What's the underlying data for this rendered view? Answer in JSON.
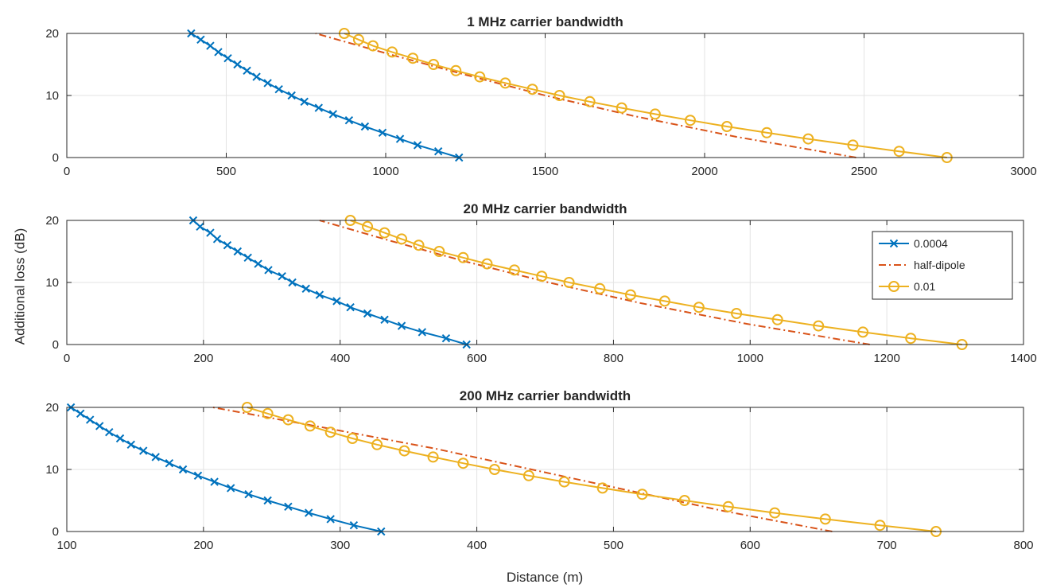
{
  "figure": {
    "ylabel": "Additional loss (dB)",
    "xlabel": "Distance (m)"
  },
  "legend": {
    "placement": "inside-right of middle subplot",
    "entries": [
      {
        "name": "0.0004",
        "color": "#0072BD",
        "style": "solid",
        "marker": "x"
      },
      {
        "name": "half-dipole",
        "color": "#D95319",
        "style": "dash-dot",
        "marker": "none"
      },
      {
        "name": "0.01",
        "color": "#EDB120",
        "style": "solid",
        "marker": "circle"
      }
    ]
  },
  "chart_data": [
    {
      "type": "line",
      "title": "1 MHz carrier bandwidth",
      "xlim": [
        0,
        3000
      ],
      "ylim": [
        0,
        20
      ],
      "xticks": [
        "0",
        "500",
        "1000",
        "1500",
        "2000",
        "2500",
        "3000"
      ],
      "yticks": [
        "0",
        "10",
        "20"
      ],
      "grid": true,
      "series": [
        {
          "name": "0.0004",
          "x": [
            1230,
            1165,
            1100,
            1045,
            990,
            935,
            885,
            835,
            790,
            745,
            705,
            665,
            630,
            595,
            565,
            535,
            505,
            475,
            450,
            420,
            390
          ],
          "y": [
            0,
            1,
            2,
            3,
            4,
            5,
            6,
            7,
            8,
            9,
            10,
            11,
            12,
            13,
            14,
            15,
            16,
            17,
            18,
            19,
            20
          ]
        },
        {
          "name": "half-dipole",
          "x": [
            2475,
            2100,
            1780,
            1500,
            1250,
            1010,
            780
          ],
          "y": [
            0,
            3.33,
            6.67,
            10,
            13.33,
            16.67,
            20
          ]
        },
        {
          "name": "0.01",
          "x": [
            2760,
            2610,
            2465,
            2325,
            2195,
            2070,
            1955,
            1845,
            1740,
            1640,
            1545,
            1460,
            1375,
            1295,
            1220,
            1150,
            1085,
            1020,
            960,
            915,
            870
          ],
          "y": [
            0,
            1,
            2,
            3,
            4,
            5,
            6,
            7,
            8,
            9,
            10,
            11,
            12,
            13,
            14,
            15,
            16,
            17,
            18,
            19,
            20
          ]
        }
      ]
    },
    {
      "type": "line",
      "title": "20 MHz carrier bandwidth",
      "xlim": [
        0,
        1400
      ],
      "ylim": [
        0,
        20
      ],
      "xticks": [
        "0",
        "200",
        "400",
        "600",
        "800",
        "1000",
        "1200",
        "1400"
      ],
      "yticks": [
        "0",
        "10",
        "20"
      ],
      "grid": true,
      "series": [
        {
          "name": "0.0004",
          "x": [
            585,
            555,
            520,
            490,
            465,
            440,
            415,
            395,
            370,
            350,
            330,
            315,
            295,
            280,
            265,
            250,
            235,
            220,
            210,
            195,
            185
          ],
          "y": [
            0,
            1,
            2,
            3,
            4,
            5,
            6,
            7,
            8,
            9,
            10,
            11,
            12,
            13,
            14,
            15,
            16,
            17,
            18,
            19,
            20
          ]
        },
        {
          "name": "half-dipole",
          "x": [
            1175,
            995,
            840,
            705,
            585,
            475,
            370
          ],
          "y": [
            0,
            3.33,
            6.67,
            10,
            13.33,
            16.67,
            20
          ]
        },
        {
          "name": "0.01",
          "x": [
            1310,
            1235,
            1165,
            1100,
            1040,
            980,
            925,
            875,
            825,
            780,
            735,
            695,
            655,
            615,
            580,
            545,
            515,
            490,
            465,
            440,
            415
          ],
          "y": [
            0,
            1,
            2,
            3,
            4,
            5,
            6,
            7,
            8,
            9,
            10,
            11,
            12,
            13,
            14,
            15,
            16,
            17,
            18,
            19,
            20
          ]
        }
      ]
    },
    {
      "type": "line",
      "title": "200 MHz carrier bandwidth",
      "xlim": [
        100,
        800
      ],
      "ylim": [
        0,
        20
      ],
      "xticks": [
        "100",
        "200",
        "300",
        "400",
        "500",
        "600",
        "700",
        "800"
      ],
      "yticks": [
        "0",
        "10",
        "20"
      ],
      "grid": true,
      "series": [
        {
          "name": "0.0004",
          "x": [
            330,
            310,
            293,
            277,
            262,
            247,
            233,
            220,
            208,
            196,
            185,
            175,
            165,
            156,
            147,
            139,
            131,
            124,
            117,
            110,
            103
          ],
          "y": [
            0,
            1,
            2,
            3,
            4,
            5,
            6,
            7,
            8,
            9,
            10,
            11,
            12,
            13,
            14,
            15,
            16,
            17,
            18,
            19,
            20
          ]
        },
        {
          "name": "half-dipole",
          "x": [
            660,
            580,
            510,
            440,
            370,
            290,
            207
          ],
          "y": [
            0,
            3.33,
            6.67,
            10,
            13.33,
            16.67,
            20
          ]
        },
        {
          "name": "0.01",
          "x": [
            736,
            695,
            655,
            618,
            584,
            552,
            521,
            492,
            464,
            438,
            413,
            390,
            368,
            347,
            327,
            309,
            293,
            278,
            262,
            247,
            232
          ],
          "y": [
            0,
            1,
            2,
            3,
            4,
            5,
            6,
            7,
            8,
            9,
            10,
            11,
            12,
            13,
            14,
            15,
            16,
            17,
            18,
            19,
            20
          ]
        }
      ]
    }
  ]
}
